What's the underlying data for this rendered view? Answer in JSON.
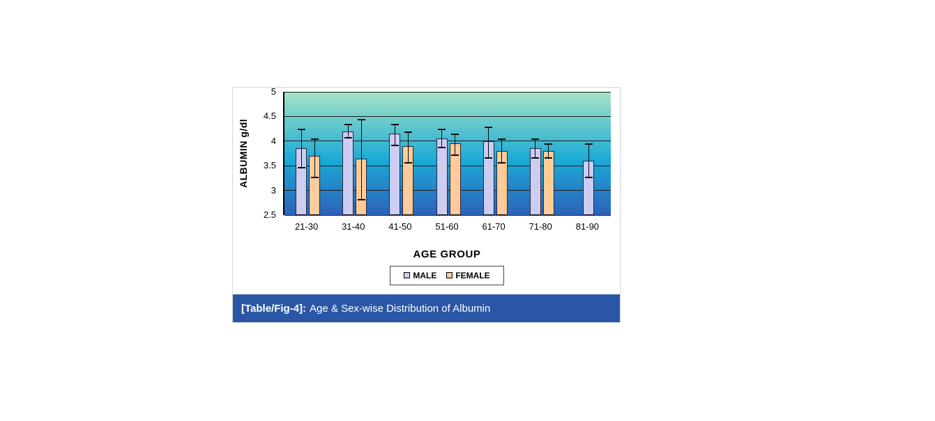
{
  "figure": {
    "caption": {
      "prefix": "[Table/Fig-4]:",
      "text": "Age & Sex-wise Distribution of Albumin",
      "bar_color": "#2A57A5"
    }
  },
  "chart_data": {
    "type": "bar",
    "title": "",
    "xlabel": "AGE GROUP",
    "ylabel": "ALBUMIN g/dl",
    "categories": [
      "21-30",
      "31-40",
      "41-50",
      "51-60",
      "61-70",
      "71-80",
      "81-90"
    ],
    "series": [
      {
        "name": "MALE",
        "color": "#CDCDF2",
        "border": "#26263a",
        "values": [
          3.85,
          4.2,
          4.15,
          4.05,
          4.0,
          3.85,
          3.6
        ],
        "err_low": [
          3.45,
          4.05,
          3.9,
          3.85,
          3.65,
          3.65,
          3.25
        ],
        "err_high": [
          4.25,
          4.35,
          4.35,
          4.25,
          4.3,
          4.05,
          3.95
        ]
      },
      {
        "name": "FEMALE",
        "color": "#FFCC99",
        "border": "#26263a",
        "values": [
          3.7,
          3.65,
          3.9,
          3.95,
          3.8,
          3.8,
          null
        ],
        "err_low": [
          3.25,
          2.8,
          3.55,
          3.7,
          3.55,
          3.65,
          null
        ],
        "err_high": [
          4.05,
          4.45,
          4.2,
          4.15,
          4.05,
          3.95,
          null
        ]
      }
    ],
    "ylim": [
      2.5,
      5
    ],
    "yticks": [
      5,
      4.5,
      4,
      3.5,
      3,
      2.5
    ],
    "grid": true,
    "legend_position": "bottom",
    "plot_bg_gradient": [
      "#A6E4C6",
      "#1BAAD6",
      "#2C62B8"
    ]
  }
}
